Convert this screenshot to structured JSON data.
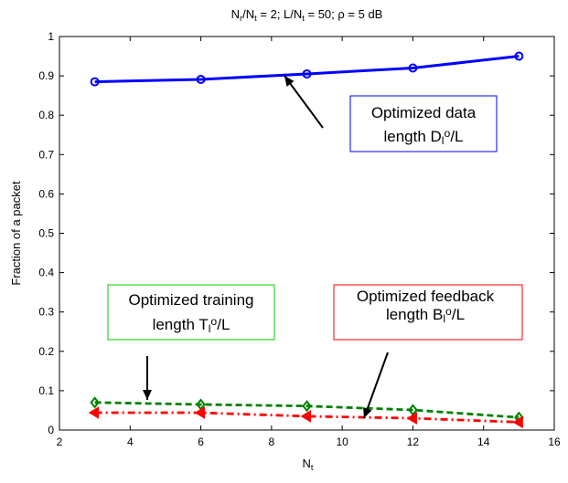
{
  "chart_data": {
    "type": "line",
    "title": {
      "parts": [
        {
          "t": "N"
        },
        {
          "t": "r",
          "sub": true
        },
        {
          "t": "/N"
        },
        {
          "t": "t",
          "sub": true
        },
        {
          "t": " = 2; L/N"
        },
        {
          "t": "t",
          "sub": true
        },
        {
          "t": " = 50; ρ = 5 dB"
        }
      ]
    },
    "xlabel": {
      "parts": [
        {
          "t": "N"
        },
        {
          "t": "t",
          "sub": true
        }
      ]
    },
    "ylabel": "Fraction of a packet",
    "xlim": [
      2,
      16
    ],
    "ylim": [
      0,
      1
    ],
    "xticks": [
      2,
      4,
      6,
      8,
      10,
      12,
      14,
      16
    ],
    "yticks": [
      0,
      0.1,
      0.2,
      0.3,
      0.4,
      0.5,
      0.6,
      0.7,
      0.8,
      0.9,
      1
    ],
    "grid": false,
    "x": [
      3,
      6,
      9,
      12,
      15
    ],
    "series": [
      {
        "key": "data",
        "values": [
          0.885,
          0.891,
          0.905,
          0.92,
          0.95
        ],
        "color": "#0000ff",
        "line": "solid",
        "marker": "circle"
      },
      {
        "key": "training",
        "values": [
          0.07,
          0.065,
          0.061,
          0.051,
          0.032
        ],
        "color": "#008000",
        "line": "dashed",
        "marker": "diamond"
      },
      {
        "key": "feedback",
        "values": [
          0.044,
          0.044,
          0.035,
          0.03,
          0.02
        ],
        "color": "#ff0000",
        "line": "dashdot",
        "marker": "triangle-left"
      }
    ],
    "annotations": [
      {
        "key": "data",
        "color": "#0000ff",
        "lines": [
          {
            "parts": [
              {
                "t": "Optimized data"
              }
            ]
          },
          {
            "parts": [
              {
                "t": "length D"
              },
              {
                "t": "l",
                "sub": true
              },
              {
                "t": "o",
                "sup": true
              },
              {
                "t": "/L"
              }
            ]
          }
        ]
      },
      {
        "key": "training",
        "color": "#00cc00",
        "lines": [
          {
            "parts": [
              {
                "t": "Optimized training"
              }
            ]
          },
          {
            "parts": [
              {
                "t": "length T"
              },
              {
                "t": "l",
                "sub": true
              },
              {
                "t": "o",
                "sup": true
              },
              {
                "t": "/L"
              }
            ]
          }
        ]
      },
      {
        "key": "feedback",
        "color": "#ff0000",
        "lines": [
          {
            "parts": [
              {
                "t": "Optimized feedback"
              }
            ]
          },
          {
            "parts": [
              {
                "t": "length B"
              },
              {
                "t": "l",
                "sub": true
              },
              {
                "t": "o",
                "sup": true
              },
              {
                "t": "/L"
              }
            ]
          }
        ]
      }
    ]
  }
}
